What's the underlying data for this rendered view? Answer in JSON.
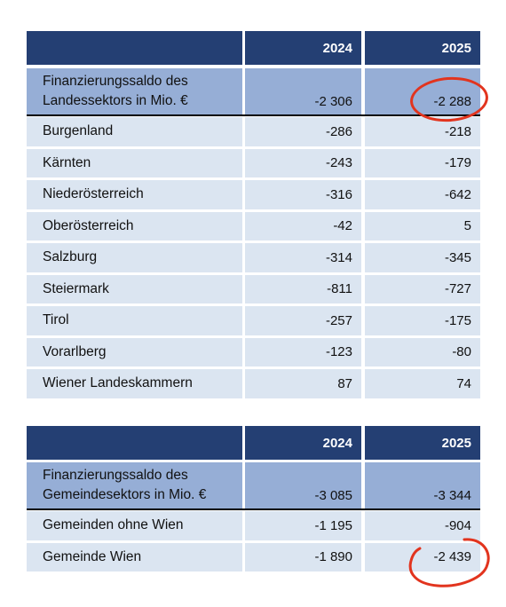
{
  "table1": {
    "headers": [
      "",
      "2024",
      "2025"
    ],
    "summary": {
      "label_line1": "Finanzierungssaldo des",
      "label_line2": "Landessektors in Mio. €",
      "v2024": "-2 306",
      "v2025": "-2 288"
    },
    "rows": [
      {
        "name": "Burgenland",
        "v2024": "-286",
        "v2025": "-218"
      },
      {
        "name": "Kärnten",
        "v2024": "-243",
        "v2025": "-179"
      },
      {
        "name": "Niederösterreich",
        "v2024": "-316",
        "v2025": "-642"
      },
      {
        "name": "Oberösterreich",
        "v2024": "-42",
        "v2025": "5"
      },
      {
        "name": "Salzburg",
        "v2024": "-314",
        "v2025": "-345"
      },
      {
        "name": "Steiermark",
        "v2024": "-811",
        "v2025": "-727"
      },
      {
        "name": "Tirol",
        "v2024": "-257",
        "v2025": "-175"
      },
      {
        "name": "Vorarlberg",
        "v2024": "-123",
        "v2025": "-80"
      },
      {
        "name": "Wiener Landeskammern",
        "v2024": "87",
        "v2025": "74"
      }
    ]
  },
  "table2": {
    "headers": [
      "",
      "2024",
      "2025"
    ],
    "summary": {
      "label_line1": "Finanzierungssaldo des",
      "label_line2": "Gemeindesektors in Mio. €",
      "v2024": "-3 085",
      "v2025": "-3 344"
    },
    "rows": [
      {
        "name": "Gemeinden ohne Wien",
        "v2024": "-1 195",
        "v2025": "-904"
      },
      {
        "name": "Gemeinde Wien",
        "v2024": "-1 890",
        "v2025": "-2 439"
      }
    ]
  },
  "colors": {
    "header": "#243f73",
    "summary": "#96aed6",
    "row": "#dbe5f1",
    "annotation": "#e2341e"
  }
}
